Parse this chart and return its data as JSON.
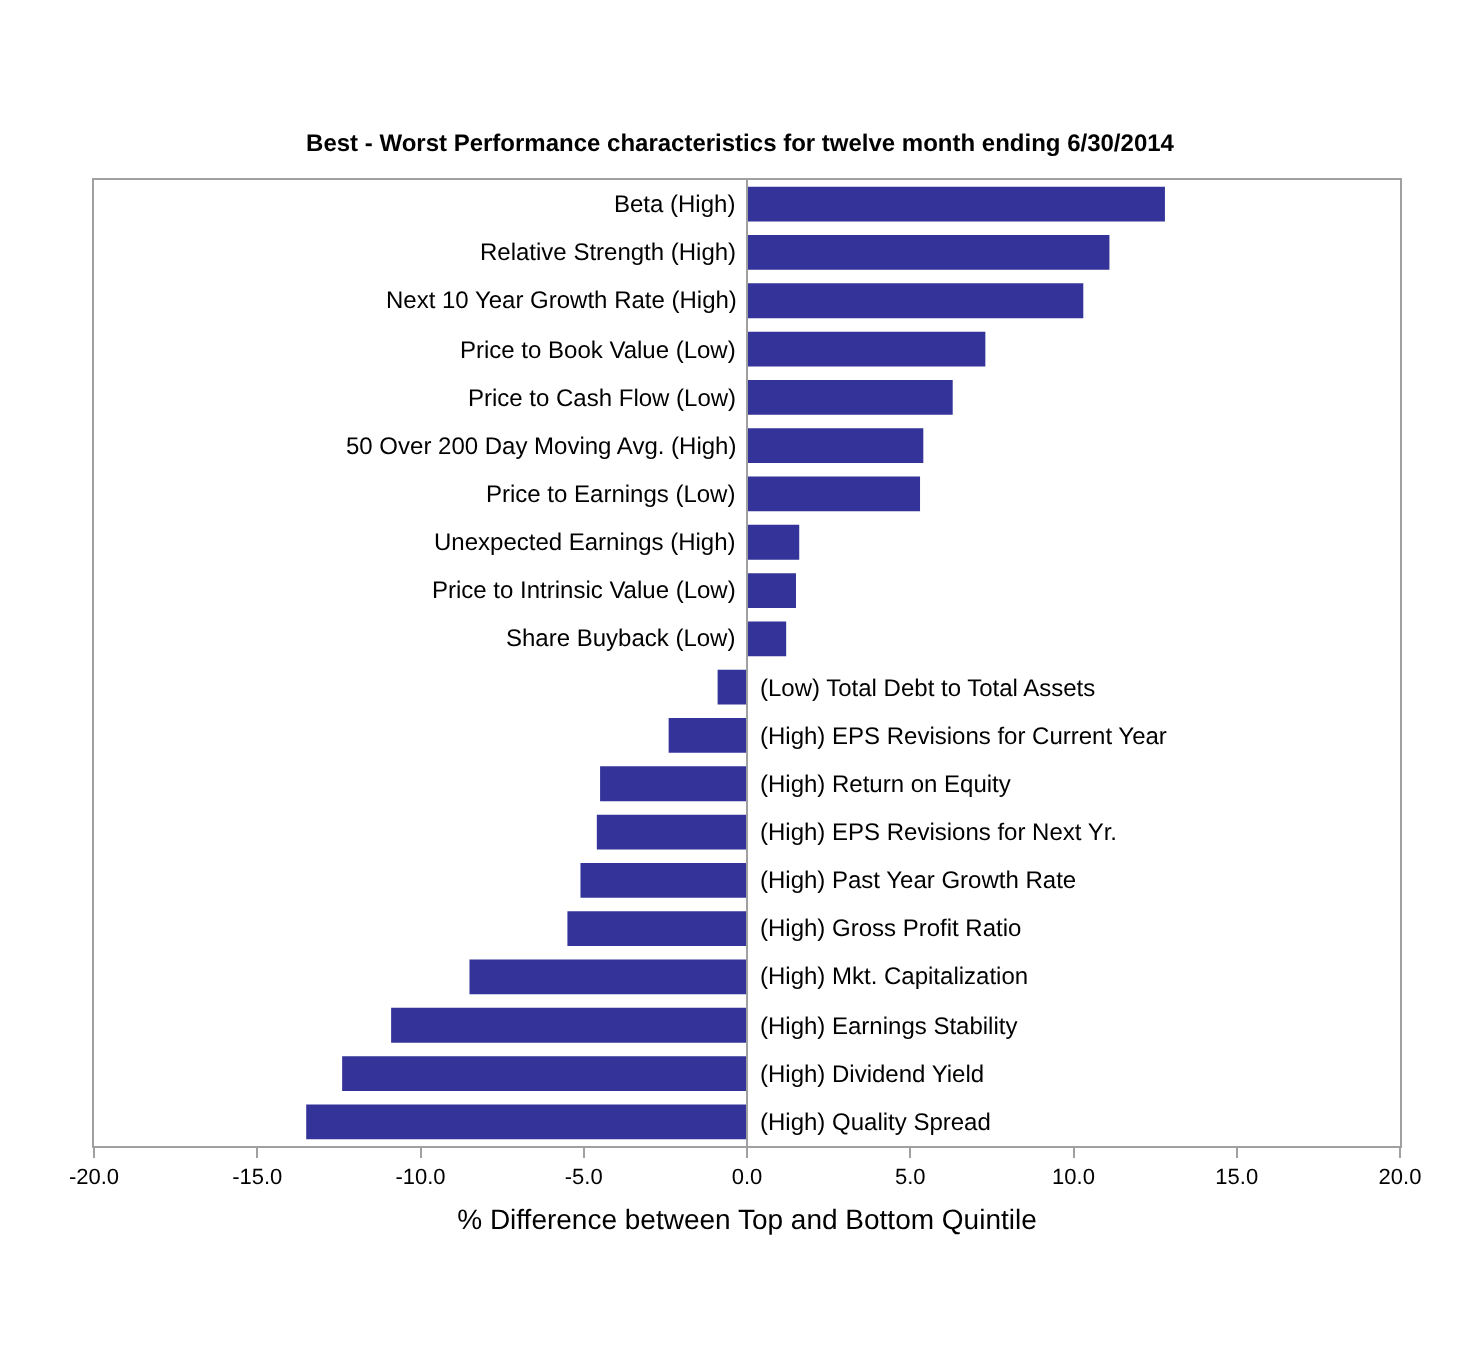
{
  "chart_data": {
    "type": "bar",
    "orientation": "horizontal",
    "title": "Best - Worst Performance characteristics for twelve month ending 6/30/2014",
    "xlabel": "% Difference between Top and Bottom Quintile",
    "categories": [
      "Beta (High)",
      "Relative Strength (High)",
      "Next 10 Year Growth Rate (High)",
      "Price to Book Value (Low)",
      "Price to Cash Flow (Low)",
      "50 Over 200 Day Moving Avg. (High)",
      "Price to Earnings (Low)",
      "Unexpected Earnings (High)",
      "Price to Intrinsic Value (Low)",
      "Share Buyback (Low)",
      "(Low) Total Debt to Total Assets",
      "(High) EPS Revisions for Current Year",
      "(High) Return on Equity",
      "(High) EPS Revisions for Next Yr.",
      "(High) Past Year Growth Rate",
      "(High) Gross Profit Ratio",
      "(High) Mkt. Capitalization",
      "(High) Earnings Stability",
      "(High) Dividend Yield",
      "(High) Quality Spread"
    ],
    "values": [
      12.8,
      11.1,
      10.3,
      7.3,
      6.3,
      5.4,
      5.3,
      1.6,
      1.5,
      1.2,
      -0.9,
      -2.4,
      -4.5,
      -4.6,
      -5.1,
      -5.5,
      -8.5,
      -10.9,
      -12.4,
      -13.5
    ],
    "color": "#333399",
    "xlim": [
      -20,
      20
    ],
    "xticks": [
      {
        "value": -20,
        "label": "-20.0"
      },
      {
        "value": -15,
        "label": "-15.0"
      },
      {
        "value": -10,
        "label": "-10.0"
      },
      {
        "value": -5,
        "label": "-5.0"
      },
      {
        "value": 0,
        "label": "0.0"
      },
      {
        "value": 5,
        "label": "5.0"
      },
      {
        "value": 10,
        "label": "10.0"
      },
      {
        "value": 15,
        "label": "15.0"
      },
      {
        "value": 20,
        "label": "20.0"
      }
    ],
    "grid": false
  }
}
